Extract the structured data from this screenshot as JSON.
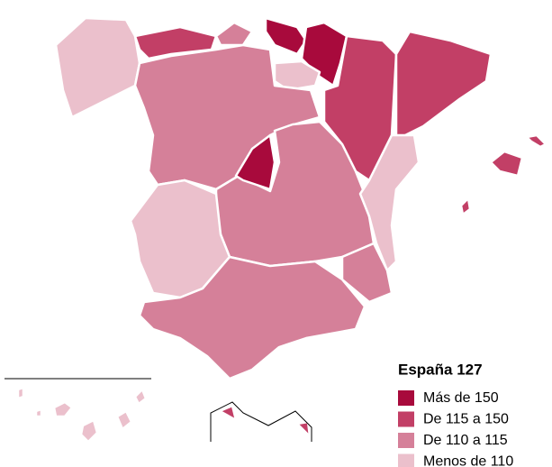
{
  "legend": {
    "title": "España 127",
    "items": [
      {
        "label": "Más de 150",
        "color": "#a80a3c"
      },
      {
        "label": "De 115 a 150",
        "color": "#c23f66"
      },
      {
        "label": "De 110 a 115",
        "color": "#d58099"
      },
      {
        "label": "Menos de 110",
        "color": "#ebc0cc"
      }
    ]
  }
}
